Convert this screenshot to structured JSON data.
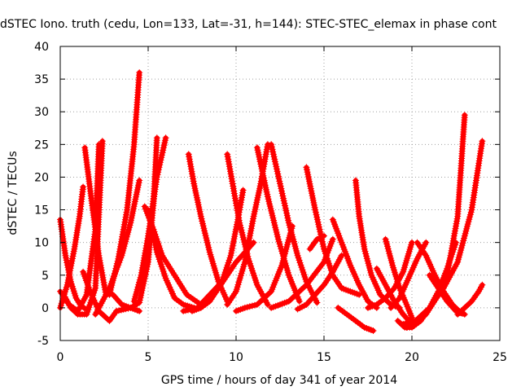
{
  "chart_data": {
    "type": "line",
    "title": "dSTEC Iono. truth (cedu, Lon=133, Lat=-31, h=144): STEC-STEC_elemax in phase cont",
    "xlabel": "GPS time / hours of day 341 of year 2014",
    "ylabel": "dSTEC  / TECUs",
    "xlim": [
      0,
      25
    ],
    "ylim": [
      -5,
      40
    ],
    "xticks": [
      "0",
      "5",
      "10",
      "15",
      "20",
      "25"
    ],
    "yticks": [
      "-5",
      "0",
      "5",
      "10",
      "15",
      "20",
      "25",
      "30",
      "35",
      "40"
    ],
    "grid": true,
    "marker": "+",
    "color": "#ff0000",
    "series": [
      {
        "x": [
          0.0,
          0.3,
          0.6,
          0.9,
          1.2,
          1.5
        ],
        "y": [
          13.5,
          8.0,
          4.0,
          1.5,
          0.2,
          -0.2
        ]
      },
      {
        "x": [
          0.0,
          0.4,
          0.8,
          1.1,
          1.3
        ],
        "y": [
          0.0,
          3.5,
          9.0,
          14.0,
          18.5
        ]
      },
      {
        "x": [
          0.0,
          0.5,
          1.0,
          1.5,
          2.0,
          2.2
        ],
        "y": [
          2.5,
          0.5,
          -0.5,
          2.0,
          12.0,
          25.0
        ]
      },
      {
        "x": [
          0.2,
          0.6,
          1.0,
          1.5,
          2.0,
          2.4
        ],
        "y": [
          2.0,
          0.0,
          -1.0,
          -1.0,
          3.0,
          25.5
        ]
      },
      {
        "x": [
          1.4,
          1.8,
          2.2,
          2.6
        ],
        "y": [
          24.5,
          16.0,
          8.0,
          2.0
        ]
      },
      {
        "x": [
          1.3,
          1.7,
          2.2,
          2.8,
          3.2
        ],
        "y": [
          5.5,
          2.5,
          -0.5,
          -2.0,
          -0.5
        ]
      },
      {
        "x": [
          2.8,
          3.3,
          3.8,
          4.2,
          4.5
        ],
        "y": [
          2.0,
          7.5,
          15.0,
          25.0,
          36.0
        ]
      },
      {
        "x": [
          2.0,
          2.8,
          3.5,
          4.0,
          4.5
        ],
        "y": [
          -1.0,
          3.0,
          8.0,
          13.0,
          19.5
        ]
      },
      {
        "x": [
          3.0,
          3.5,
          4.0,
          4.5
        ],
        "y": [
          2.0,
          0.5,
          0.0,
          -0.5
        ]
      },
      {
        "x": [
          3.2,
          4.0,
          4.5,
          5.0,
          5.3,
          5.5
        ],
        "y": [
          -0.5,
          0.0,
          0.8,
          7.0,
          16.0,
          26.0
        ]
      },
      {
        "x": [
          4.2,
          4.6,
          5.0,
          5.5,
          6.0
        ],
        "y": [
          1.0,
          5.0,
          11.0,
          20.0,
          26.0
        ]
      },
      {
        "x": [
          4.8,
          5.3,
          5.8,
          6.5,
          7.2,
          8.0
        ],
        "y": [
          15.5,
          12.0,
          8.0,
          5.0,
          2.0,
          0.5
        ]
      },
      {
        "x": [
          5.0,
          5.5,
          6.0,
          6.5,
          7.0,
          7.6
        ],
        "y": [
          15.0,
          8.5,
          4.5,
          1.5,
          0.5,
          0.0
        ]
      },
      {
        "x": [
          7.3,
          7.6,
          8.0,
          8.5,
          9.0,
          9.5
        ],
        "y": [
          23.5,
          19.0,
          14.0,
          8.5,
          4.0,
          1.0
        ]
      },
      {
        "x": [
          7.5,
          8.0,
          8.5,
          9.0,
          9.5,
          10.0,
          10.5,
          11.0
        ],
        "y": [
          -0.5,
          0.0,
          1.0,
          3.0,
          5.0,
          7.0,
          8.5,
          10.0
        ]
      },
      {
        "x": [
          7.0,
          7.8,
          8.5,
          9.2,
          9.7,
          10.1,
          10.4
        ],
        "y": [
          -0.5,
          0.0,
          2.0,
          4.0,
          8.0,
          13.5,
          18.0
        ]
      },
      {
        "x": [
          9.5,
          9.8,
          10.2,
          10.7,
          11.2,
          11.8
        ],
        "y": [
          23.5,
          19.0,
          13.0,
          7.5,
          3.5,
          0.5
        ]
      },
      {
        "x": [
          9.5,
          10.0,
          10.5,
          11.0,
          11.4,
          11.8
        ],
        "y": [
          0.5,
          2.5,
          7.0,
          14.0,
          19.0,
          25.0
        ]
      },
      {
        "x": [
          11.2,
          11.8,
          12.4,
          13.0,
          13.6
        ],
        "y": [
          24.5,
          17.0,
          10.5,
          5.0,
          1.0
        ]
      },
      {
        "x": [
          10.0,
          10.5,
          11.2,
          12.0,
          12.6,
          13.2
        ],
        "y": [
          -0.5,
          0.0,
          0.5,
          2.5,
          6.5,
          12.5
        ]
      },
      {
        "x": [
          12.0,
          12.5,
          13.0,
          13.5,
          14.0,
          14.6
        ],
        "y": [
          25.0,
          19.0,
          13.0,
          8.0,
          4.0,
          0.8
        ]
      },
      {
        "x": [
          12.0,
          13.0,
          14.0,
          15.0,
          15.5
        ],
        "y": [
          0.0,
          1.0,
          3.5,
          7.0,
          10.5
        ]
      },
      {
        "x": [
          13.5,
          14.0,
          14.5,
          15.0,
          15.5,
          16.0
        ],
        "y": [
          -0.2,
          0.5,
          2.0,
          3.5,
          5.5,
          8.0
        ]
      },
      {
        "x": [
          14.0,
          14.5,
          15.0,
          15.5,
          16.0,
          16.5,
          17.0
        ],
        "y": [
          21.5,
          15.0,
          9.0,
          5.0,
          3.0,
          2.5,
          2.0
        ]
      },
      {
        "x": [
          14.2,
          14.6,
          15.0
        ],
        "y": [
          9.0,
          10.5,
          11.0
        ]
      },
      {
        "x": [
          15.5,
          16.0,
          16.5,
          17.0,
          17.5,
          18.0
        ],
        "y": [
          13.5,
          10.0,
          6.5,
          3.5,
          1.0,
          0.0
        ]
      },
      {
        "x": [
          15.8,
          16.3,
          16.8,
          17.3,
          17.8
        ],
        "y": [
          0.0,
          -1.0,
          -2.0,
          -3.0,
          -3.5
        ]
      },
      {
        "x": [
          16.8,
          17.0,
          17.3,
          17.7,
          18.2,
          18.8,
          19.3
        ],
        "y": [
          19.5,
          14.0,
          9.0,
          5.0,
          2.0,
          0.5,
          0.0
        ]
      },
      {
        "x": [
          17.5,
          18.0,
          18.5,
          19.0,
          19.5,
          20.0
        ],
        "y": [
          0.0,
          0.5,
          1.5,
          3.0,
          5.5,
          10.0
        ]
      },
      {
        "x": [
          18.0,
          18.5,
          19.0,
          19.5,
          20.0
        ],
        "y": [
          6.0,
          3.5,
          1.0,
          -1.0,
          -2.5
        ]
      },
      {
        "x": [
          18.5,
          18.9,
          19.3,
          19.7,
          20.0
        ],
        "y": [
          10.5,
          6.5,
          3.0,
          0.5,
          -1.5
        ]
      },
      {
        "x": [
          18.8,
          19.3,
          19.8,
          20.3,
          20.8
        ],
        "y": [
          0.0,
          1.5,
          4.5,
          7.5,
          10.0
        ]
      },
      {
        "x": [
          19.2,
          19.6,
          20.0,
          20.5,
          21.0,
          21.5,
          22.0,
          22.5
        ],
        "y": [
          -2.0,
          -3.0,
          -3.0,
          -2.0,
          0.0,
          2.5,
          6.0,
          10.0
        ]
      },
      {
        "x": [
          19.7,
          20.2,
          20.8,
          21.4,
          22.0,
          22.6,
          23.0
        ],
        "y": [
          -3.0,
          -2.5,
          -1.0,
          1.5,
          5.0,
          14.0,
          29.5
        ]
      },
      {
        "x": [
          19.5,
          20.2,
          21.0,
          21.8,
          22.6,
          23.4,
          24.0
        ],
        "y": [
          -2.5,
          -2.0,
          0.0,
          3.0,
          7.0,
          15.0,
          25.5
        ]
      },
      {
        "x": [
          20.3,
          20.8,
          21.3,
          21.8,
          22.3,
          22.8
        ],
        "y": [
          10.0,
          8.0,
          5.0,
          2.5,
          0.5,
          -0.8
        ]
      },
      {
        "x": [
          21.0,
          21.5,
          22.0,
          22.5,
          23.0
        ],
        "y": [
          5.0,
          3.0,
          1.0,
          -0.5,
          -1.0
        ]
      },
      {
        "x": [
          22.6,
          23.0,
          23.4,
          23.8,
          24.0
        ],
        "y": [
          -1.0,
          0.0,
          1.0,
          2.5,
          3.5
        ]
      }
    ]
  }
}
